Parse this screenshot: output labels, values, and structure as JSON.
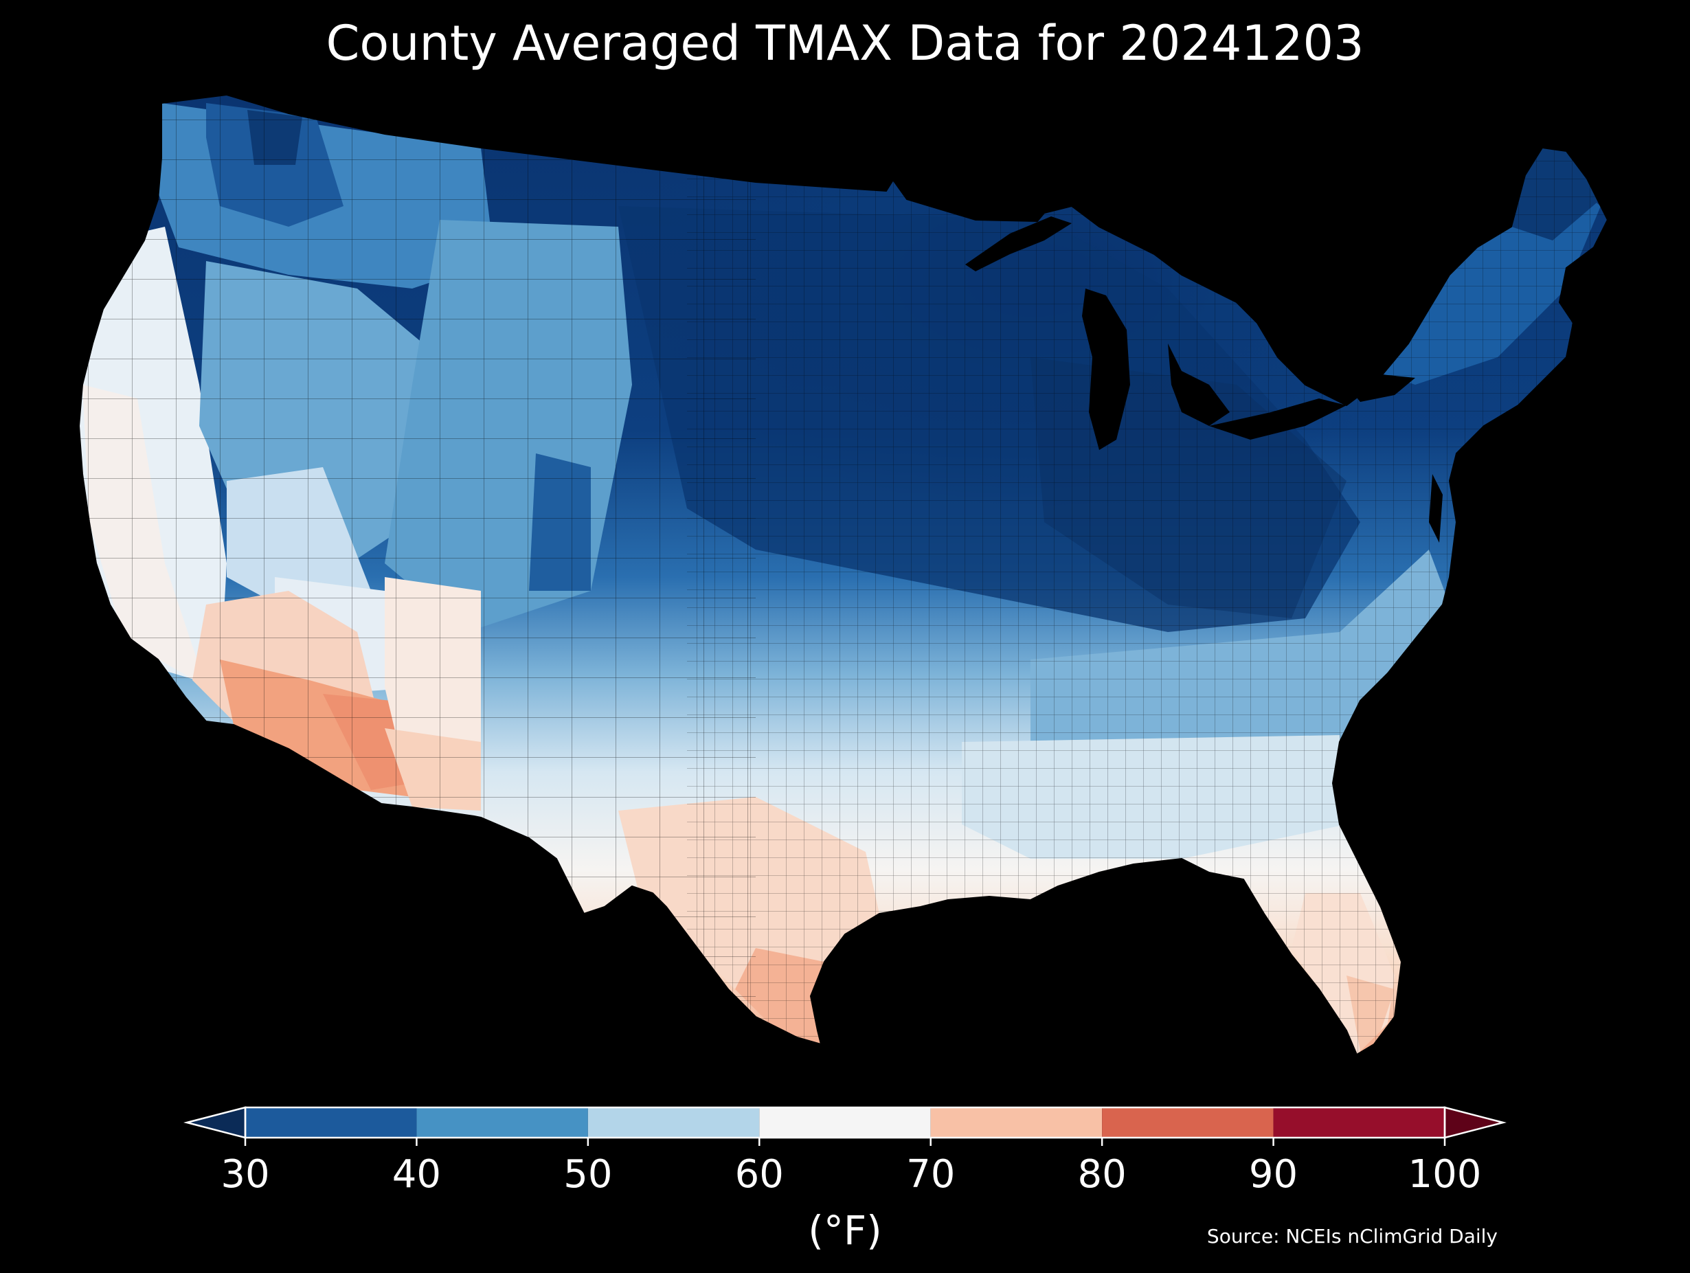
{
  "title": "County Averaged TMAX Data for 20241203",
  "colorbar": {
    "units_label": "(°F)",
    "ticks": [
      "30",
      "40",
      "50",
      "60",
      "70",
      "80",
      "90",
      "100"
    ],
    "bins": [
      {
        "min": 30,
        "max": 40,
        "color": "#1c5a9c"
      },
      {
        "min": 40,
        "max": 50,
        "color": "#4692c4"
      },
      {
        "min": 50,
        "max": 60,
        "color": "#b3d5e9"
      },
      {
        "min": 60,
        "max": 70,
        "color": "#f5f5f5"
      },
      {
        "min": 70,
        "max": 80,
        "color": "#f8c1a6"
      },
      {
        "min": 80,
        "max": 90,
        "color": "#d9644e"
      },
      {
        "min": 90,
        "max": 100,
        "color": "#960e2b"
      }
    ],
    "under_color": "#0b2b57",
    "over_color": "#5e0218"
  },
  "source": "Source: NCEIs nClimGrid Daily",
  "map": {
    "region": "Contiguous United States",
    "projection": "conic",
    "background": "#000000",
    "border_color": "#000000"
  }
}
